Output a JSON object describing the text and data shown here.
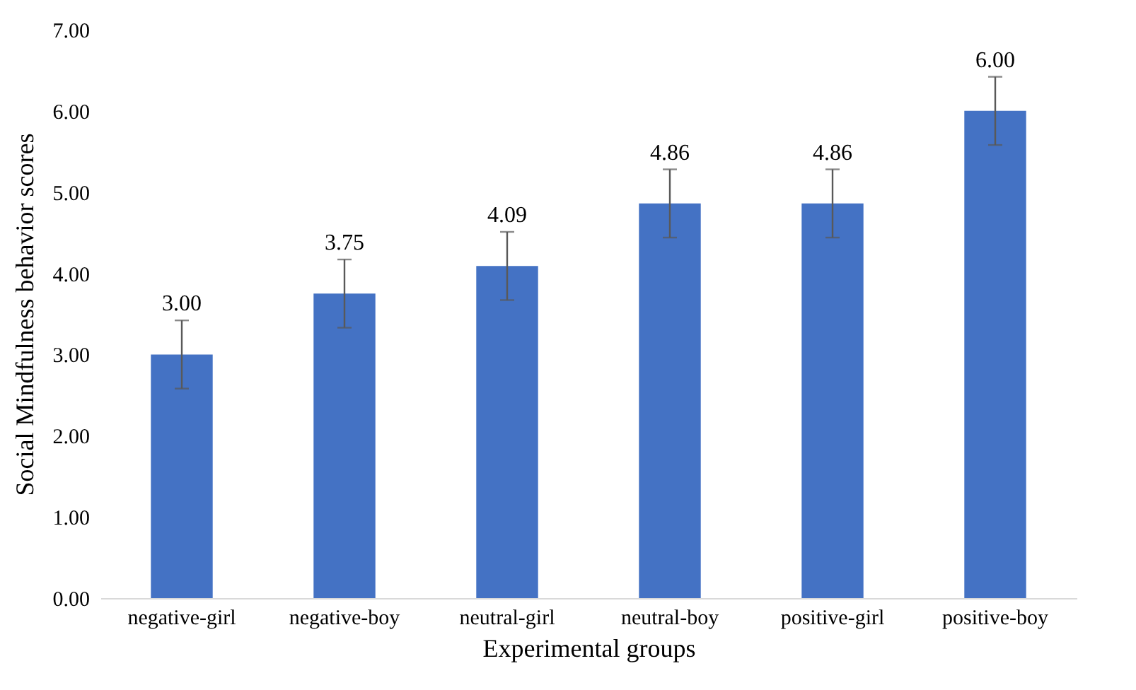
{
  "chart_data": {
    "type": "bar",
    "xlabel": "Experimental groups",
    "ylabel": "Social  Mindfulness  behavior  scores",
    "categories": [
      "negative-girl",
      "negative-boy",
      "neutral-girl",
      "neutral-boy",
      "positive-girl",
      "positive-boy"
    ],
    "values": [
      3.0,
      3.75,
      4.09,
      4.86,
      4.86,
      6.0
    ],
    "errors": [
      0.42,
      0.42,
      0.42,
      0.42,
      0.42,
      0.42
    ],
    "value_labels": [
      "3.00",
      "3.75",
      "4.09",
      "4.86",
      "4.86",
      "6.00"
    ],
    "color": "#4472c4",
    "ylim": [
      0,
      7
    ],
    "yticks": [
      {
        "value": 0,
        "label": "0.00"
      },
      {
        "value": 1,
        "label": "1.00"
      },
      {
        "value": 2,
        "label": "2.00"
      },
      {
        "value": 3,
        "label": "3.00"
      },
      {
        "value": 4,
        "label": "4.00"
      },
      {
        "value": 5,
        "label": "5.00"
      },
      {
        "value": 6,
        "label": "6.00"
      },
      {
        "value": 7,
        "label": "7.00"
      }
    ],
    "grid": false
  }
}
